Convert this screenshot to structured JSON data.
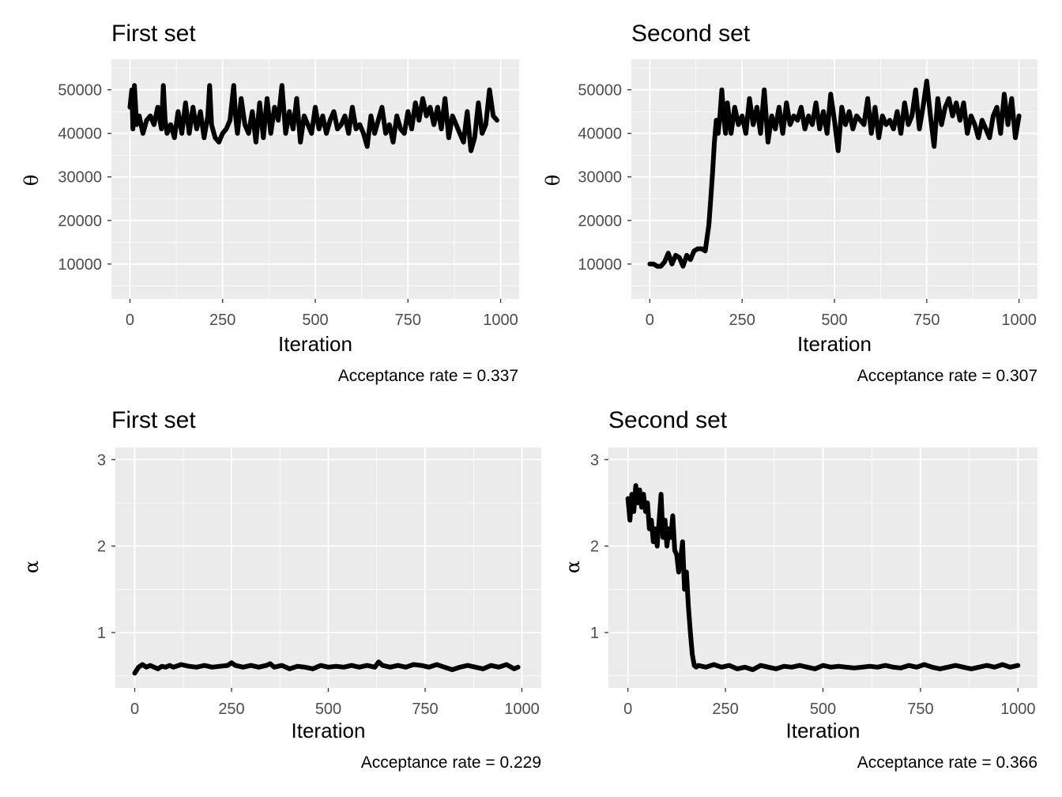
{
  "chart_data": [
    {
      "type": "line",
      "title": "First set",
      "xlabel": "Iteration",
      "ylabel": "θ",
      "caption": "Acceptance rate =  0.337",
      "xlim": [
        -50,
        1050
      ],
      "ylim": [
        2000,
        57000
      ],
      "xticks": [
        0,
        250,
        500,
        750,
        1000
      ],
      "xtick_labels": [
        "0",
        "250",
        "500",
        "750",
        "1000"
      ],
      "yticks": [
        10000,
        20000,
        30000,
        40000,
        50000
      ],
      "ytick_labels": [
        "10000",
        "20000",
        "30000",
        "40000",
        "50000"
      ],
      "grid": true,
      "series": [
        {
          "x": [
            0,
            5,
            8,
            12,
            18,
            25,
            35,
            45,
            55,
            65,
            75,
            85,
            90,
            95,
            100,
            110,
            120,
            130,
            140,
            150,
            160,
            170,
            180,
            190,
            200,
            210,
            215,
            220,
            230,
            240,
            250,
            260,
            270,
            280,
            285,
            290,
            300,
            310,
            320,
            330,
            340,
            350,
            360,
            370,
            380,
            390,
            400,
            410,
            420,
            430,
            440,
            450,
            460,
            470,
            480,
            490,
            500,
            510,
            520,
            530,
            540,
            550,
            560,
            570,
            580,
            590,
            600,
            610,
            620,
            630,
            640,
            650,
            660,
            670,
            680,
            690,
            700,
            710,
            720,
            730,
            740,
            750,
            760,
            770,
            780,
            790,
            800,
            810,
            820,
            830,
            840,
            850,
            860,
            870,
            880,
            890,
            900,
            910,
            920,
            930,
            940,
            950,
            960,
            970,
            980,
            990
          ],
          "y": [
            46000,
            50000,
            41000,
            51000,
            42000,
            44000,
            40000,
            43000,
            44000,
            42000,
            46000,
            41000,
            51000,
            43000,
            40000,
            42000,
            39000,
            45000,
            40000,
            47000,
            40000,
            46000,
            41000,
            45000,
            39000,
            44000,
            51000,
            42000,
            39000,
            38000,
            40000,
            41000,
            43000,
            51000,
            44000,
            40000,
            48000,
            42000,
            40000,
            45000,
            38000,
            47000,
            39000,
            48000,
            40000,
            46000,
            43000,
            51000,
            40000,
            45000,
            41000,
            48000,
            38000,
            44000,
            42000,
            40000,
            46000,
            41000,
            44000,
            40000,
            43000,
            45000,
            41000,
            42000,
            44000,
            40000,
            46000,
            41000,
            42000,
            40000,
            37000,
            44000,
            40000,
            43000,
            46000,
            40000,
            42000,
            38000,
            44000,
            41000,
            40000,
            45000,
            41000,
            47000,
            43000,
            48000,
            44000,
            46000,
            42000,
            46000,
            41000,
            48000,
            39000,
            44000,
            42000,
            40000,
            38000,
            45000,
            36000,
            39000,
            47000,
            40000,
            42000,
            50000,
            44000,
            43000
          ]
        }
      ]
    },
    {
      "type": "line",
      "title": "Second set",
      "xlabel": "Iteration",
      "ylabel": "θ",
      "caption": "Acceptance rate =  0.307",
      "xlim": [
        -50,
        1050
      ],
      "ylim": [
        2000,
        57000
      ],
      "xticks": [
        0,
        250,
        500,
        750,
        1000
      ],
      "xtick_labels": [
        "0",
        "250",
        "500",
        "750",
        "1000"
      ],
      "yticks": [
        10000,
        20000,
        30000,
        40000,
        50000
      ],
      "ytick_labels": [
        "10000",
        "20000",
        "30000",
        "40000",
        "50000"
      ],
      "grid": true,
      "series": [
        {
          "x": [
            0,
            10,
            20,
            30,
            40,
            50,
            60,
            70,
            80,
            90,
            100,
            110,
            120,
            130,
            140,
            150,
            155,
            160,
            165,
            170,
            175,
            180,
            185,
            190,
            195,
            200,
            205,
            210,
            220,
            230,
            240,
            250,
            260,
            270,
            280,
            290,
            300,
            310,
            320,
            330,
            340,
            350,
            360,
            370,
            380,
            390,
            400,
            410,
            420,
            430,
            440,
            450,
            460,
            470,
            480,
            490,
            500,
            510,
            520,
            530,
            540,
            550,
            560,
            570,
            580,
            590,
            600,
            610,
            620,
            630,
            640,
            650,
            660,
            670,
            680,
            690,
            700,
            710,
            720,
            730,
            740,
            750,
            760,
            770,
            780,
            790,
            800,
            810,
            820,
            830,
            840,
            850,
            860,
            870,
            880,
            890,
            900,
            910,
            920,
            930,
            940,
            950,
            960,
            970,
            980,
            990,
            1000
          ],
          "y": [
            10000,
            10000,
            9500,
            9500,
            10500,
            12500,
            10000,
            12000,
            11500,
            9500,
            12000,
            11000,
            13000,
            13500,
            13500,
            13000,
            16000,
            19000,
            25000,
            31000,
            38000,
            43000,
            40000,
            44000,
            50000,
            44000,
            40000,
            47000,
            40000,
            46000,
            42000,
            44000,
            40000,
            48000,
            42000,
            46000,
            40000,
            50000,
            38000,
            44000,
            41000,
            46000,
            40000,
            47000,
            42000,
            44000,
            43000,
            46000,
            41000,
            44000,
            42000,
            47000,
            41000,
            45000,
            40000,
            49000,
            43000,
            36000,
            46000,
            42000,
            45000,
            41000,
            44000,
            43000,
            42000,
            48000,
            40000,
            46000,
            39000,
            44000,
            42000,
            43000,
            41000,
            45000,
            40000,
            47000,
            42000,
            44000,
            50000,
            41000,
            46000,
            52000,
            44000,
            37000,
            48000,
            42000,
            46000,
            48000,
            44000,
            47000,
            43000,
            47000,
            40000,
            44000,
            42000,
            39000,
            43000,
            41000,
            39000,
            44000,
            46000,
            40000,
            49000,
            42000,
            48000,
            39000,
            44000
          ]
        }
      ]
    },
    {
      "type": "line",
      "title": "First set",
      "xlabel": "Iteration",
      "ylabel": "α",
      "caption": "Acceptance rate =  0.229",
      "xlim": [
        -50,
        1050
      ],
      "ylim": [
        0.36,
        3.14
      ],
      "xticks": [
        0,
        250,
        500,
        750,
        1000
      ],
      "xtick_labels": [
        "0",
        "250",
        "500",
        "750",
        "1000"
      ],
      "yticks": [
        1,
        2,
        3
      ],
      "ytick_labels": [
        "1",
        "2",
        "3"
      ],
      "grid": true,
      "series": [
        {
          "x": [
            0,
            10,
            20,
            30,
            40,
            50,
            60,
            70,
            80,
            90,
            100,
            120,
            140,
            160,
            180,
            200,
            220,
            240,
            250,
            260,
            280,
            300,
            320,
            340,
            350,
            360,
            380,
            400,
            420,
            440,
            460,
            480,
            500,
            520,
            540,
            560,
            580,
            600,
            620,
            630,
            640,
            660,
            680,
            700,
            720,
            740,
            760,
            780,
            800,
            820,
            840,
            860,
            880,
            900,
            920,
            940,
            960,
            980,
            990
          ],
          "y": [
            0.53,
            0.6,
            0.63,
            0.6,
            0.62,
            0.6,
            0.58,
            0.61,
            0.6,
            0.62,
            0.6,
            0.63,
            0.61,
            0.6,
            0.62,
            0.6,
            0.61,
            0.62,
            0.65,
            0.62,
            0.6,
            0.62,
            0.6,
            0.62,
            0.64,
            0.6,
            0.62,
            0.58,
            0.61,
            0.6,
            0.58,
            0.62,
            0.6,
            0.61,
            0.6,
            0.62,
            0.6,
            0.62,
            0.6,
            0.66,
            0.62,
            0.6,
            0.62,
            0.6,
            0.63,
            0.62,
            0.6,
            0.63,
            0.6,
            0.57,
            0.6,
            0.62,
            0.6,
            0.58,
            0.62,
            0.6,
            0.63,
            0.58,
            0.6
          ]
        }
      ]
    },
    {
      "type": "line",
      "title": "Second set",
      "xlabel": "Iteration",
      "ylabel": "α",
      "caption": "Acceptance rate =  0.366",
      "xlim": [
        -50,
        1050
      ],
      "ylim": [
        0.36,
        3.14
      ],
      "xticks": [
        0,
        250,
        500,
        750,
        1000
      ],
      "xtick_labels": [
        "0",
        "250",
        "500",
        "750",
        "1000"
      ],
      "yticks": [
        1,
        2,
        3
      ],
      "ytick_labels": [
        "1",
        "2",
        "3"
      ],
      "grid": true,
      "series": [
        {
          "x": [
            0,
            5,
            10,
            15,
            20,
            25,
            30,
            35,
            40,
            45,
            50,
            55,
            60,
            65,
            70,
            75,
            80,
            85,
            90,
            95,
            100,
            105,
            110,
            115,
            120,
            125,
            130,
            135,
            140,
            145,
            150,
            155,
            160,
            165,
            170,
            175,
            180,
            200,
            220,
            240,
            260,
            280,
            300,
            320,
            340,
            360,
            380,
            400,
            420,
            440,
            460,
            480,
            500,
            520,
            540,
            560,
            580,
            600,
            620,
            640,
            660,
            680,
            700,
            720,
            740,
            760,
            780,
            800,
            820,
            840,
            860,
            880,
            900,
            920,
            940,
            960,
            980,
            1000
          ],
          "y": [
            2.55,
            2.3,
            2.6,
            2.4,
            2.7,
            2.5,
            2.65,
            2.45,
            2.6,
            2.4,
            2.5,
            2.2,
            2.3,
            2.05,
            2.2,
            2.0,
            2.3,
            2.6,
            2.1,
            2.3,
            2.0,
            2.2,
            2.1,
            2.35,
            1.95,
            1.9,
            1.7,
            1.85,
            2.05,
            1.5,
            1.7,
            1.3,
            1.0,
            0.75,
            0.62,
            0.6,
            0.62,
            0.6,
            0.63,
            0.6,
            0.62,
            0.58,
            0.6,
            0.57,
            0.62,
            0.6,
            0.58,
            0.61,
            0.6,
            0.62,
            0.6,
            0.58,
            0.62,
            0.6,
            0.61,
            0.6,
            0.59,
            0.6,
            0.61,
            0.6,
            0.62,
            0.6,
            0.59,
            0.62,
            0.6,
            0.63,
            0.6,
            0.58,
            0.6,
            0.62,
            0.6,
            0.58,
            0.6,
            0.62,
            0.6,
            0.63,
            0.6,
            0.62
          ]
        }
      ]
    }
  ]
}
